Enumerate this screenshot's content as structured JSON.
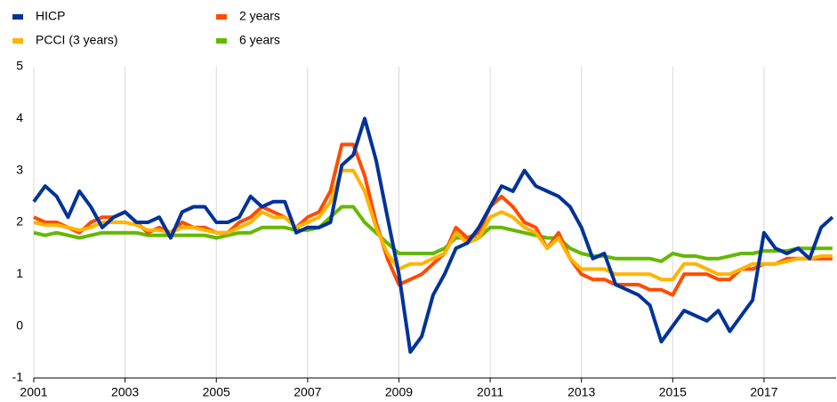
{
  "chart_data": {
    "type": "line",
    "x": [
      2001,
      2001.25,
      2001.5,
      2001.75,
      2002,
      2002.25,
      2002.5,
      2002.75,
      2003,
      2003.25,
      2003.5,
      2003.75,
      2004,
      2004.25,
      2004.5,
      2004.75,
      2005,
      2005.25,
      2005.5,
      2005.75,
      2006,
      2006.25,
      2006.5,
      2006.75,
      2007,
      2007.25,
      2007.5,
      2007.75,
      2008,
      2008.25,
      2008.5,
      2008.75,
      2009,
      2009.25,
      2009.5,
      2009.75,
      2010,
      2010.25,
      2010.5,
      2010.75,
      2011,
      2011.25,
      2011.5,
      2011.75,
      2012,
      2012.25,
      2012.5,
      2012.75,
      2013,
      2013.25,
      2013.5,
      2013.75,
      2014,
      2014.25,
      2014.5,
      2014.75,
      2015,
      2015.25,
      2015.5,
      2015.75,
      2016,
      2016.25,
      2016.5,
      2016.75,
      2017,
      2017.25,
      2017.5,
      2017.75,
      2018,
      2018.25,
      2018.5
    ],
    "series": [
      {
        "name": "HICP",
        "color": "#003299",
        "values": [
          2.4,
          2.7,
          2.5,
          2.1,
          2.6,
          2.3,
          1.9,
          2.1,
          2.2,
          2.0,
          2.0,
          2.1,
          1.7,
          2.2,
          2.3,
          2.3,
          2.0,
          2.0,
          2.1,
          2.5,
          2.3,
          2.4,
          2.4,
          1.8,
          1.9,
          1.9,
          2.0,
          3.1,
          3.3,
          4.0,
          3.2,
          2.1,
          1.0,
          -0.5,
          -0.2,
          0.6,
          1.0,
          1.5,
          1.6,
          1.9,
          2.3,
          2.7,
          2.6,
          3.0,
          2.7,
          2.6,
          2.5,
          2.3,
          1.9,
          1.3,
          1.4,
          0.8,
          0.7,
          0.6,
          0.4,
          -0.3,
          0.0,
          0.3,
          0.2,
          0.1,
          0.3,
          -0.1,
          0.2,
          0.5,
          1.8,
          1.5,
          1.4,
          1.5,
          1.3,
          1.9,
          2.1
        ]
      },
      {
        "name": "PCCI (3 years)",
        "color": "#ffb400",
        "values": [
          2.0,
          1.95,
          1.95,
          1.9,
          1.85,
          1.9,
          2.0,
          2.0,
          2.0,
          1.95,
          1.85,
          1.85,
          1.8,
          1.9,
          1.9,
          1.85,
          1.8,
          1.8,
          1.9,
          2.0,
          2.2,
          2.1,
          2.1,
          1.9,
          2.0,
          2.1,
          2.4,
          3.0,
          3.0,
          2.6,
          1.9,
          1.4,
          1.1,
          1.2,
          1.2,
          1.3,
          1.4,
          1.8,
          1.6,
          1.7,
          2.1,
          2.2,
          2.1,
          1.9,
          1.8,
          1.5,
          1.7,
          1.3,
          1.1,
          1.1,
          1.1,
          1.0,
          1.0,
          1.0,
          1.0,
          0.9,
          0.9,
          1.2,
          1.2,
          1.1,
          1.0,
          1.0,
          1.1,
          1.2,
          1.2,
          1.2,
          1.25,
          1.3,
          1.3,
          1.35,
          1.35
        ]
      },
      {
        "name": "2 years",
        "color": "#ff4b00",
        "values": [
          2.1,
          2.0,
          2.0,
          1.9,
          1.8,
          2.0,
          2.1,
          2.1,
          2.2,
          2.0,
          1.8,
          1.9,
          1.8,
          2.0,
          1.9,
          1.9,
          1.8,
          1.8,
          2.0,
          2.1,
          2.3,
          2.2,
          2.1,
          1.9,
          2.1,
          2.2,
          2.6,
          3.5,
          3.5,
          2.9,
          2.0,
          1.3,
          0.8,
          0.9,
          1.0,
          1.2,
          1.4,
          1.9,
          1.7,
          1.8,
          2.3,
          2.5,
          2.3,
          2.0,
          1.9,
          1.5,
          1.8,
          1.3,
          1.0,
          0.9,
          0.9,
          0.8,
          0.8,
          0.8,
          0.7,
          0.7,
          0.6,
          1.0,
          1.0,
          1.0,
          0.9,
          0.9,
          1.1,
          1.1,
          1.2,
          1.2,
          1.3,
          1.3,
          1.3,
          1.3,
          1.3
        ]
      },
      {
        "name": "6 years",
        "color": "#65b800",
        "values": [
          1.8,
          1.75,
          1.8,
          1.75,
          1.7,
          1.75,
          1.8,
          1.8,
          1.8,
          1.8,
          1.75,
          1.75,
          1.75,
          1.75,
          1.75,
          1.75,
          1.7,
          1.75,
          1.8,
          1.8,
          1.9,
          1.9,
          1.9,
          1.85,
          1.85,
          1.9,
          2.1,
          2.3,
          2.3,
          2.0,
          1.8,
          1.6,
          1.4,
          1.4,
          1.4,
          1.4,
          1.5,
          1.7,
          1.7,
          1.7,
          1.9,
          1.9,
          1.85,
          1.8,
          1.75,
          1.7,
          1.7,
          1.5,
          1.4,
          1.35,
          1.35,
          1.3,
          1.3,
          1.3,
          1.3,
          1.25,
          1.4,
          1.35,
          1.35,
          1.3,
          1.3,
          1.35,
          1.4,
          1.4,
          1.45,
          1.45,
          1.45,
          1.5,
          1.5,
          1.5,
          1.5
        ]
      }
    ],
    "xlim": [
      2001,
      2018.58
    ],
    "xticks": [
      2001,
      2003,
      2005,
      2007,
      2009,
      2011,
      2013,
      2015,
      2017
    ],
    "ylim": [
      -1,
      5
    ],
    "yticks": [
      -1,
      0,
      1,
      2,
      3,
      4,
      5
    ],
    "grid": true
  }
}
